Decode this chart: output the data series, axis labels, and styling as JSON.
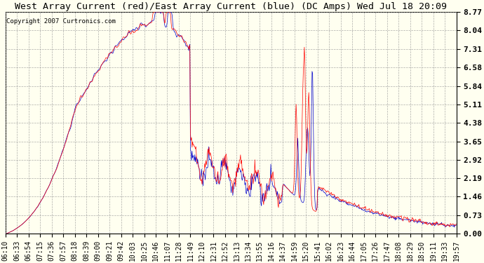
{
  "title": "West Array Current (red)/East Array Current (blue) (DC Amps) Wed Jul 18 20:09",
  "copyright": "Copyright 2007 Curtronics.com",
  "background_color": "#FFFFF0",
  "plot_bg_color": "#FFFFF0",
  "grid_color": "#999999",
  "line_color_red": "#FF0000",
  "line_color_blue": "#0000CC",
  "ylim": [
    0.0,
    8.77
  ],
  "yticks": [
    0.0,
    0.73,
    1.46,
    2.19,
    2.92,
    3.65,
    4.38,
    5.11,
    5.84,
    6.58,
    7.31,
    8.04,
    8.77
  ],
  "xtick_labels": [
    "06:10",
    "06:33",
    "06:54",
    "07:15",
    "07:36",
    "07:57",
    "08:18",
    "08:39",
    "09:00",
    "09:21",
    "09:42",
    "10:03",
    "10:25",
    "10:46",
    "11:07",
    "11:28",
    "11:49",
    "12:10",
    "12:31",
    "12:52",
    "13:13",
    "13:34",
    "13:55",
    "14:16",
    "14:37",
    "14:59",
    "15:20",
    "15:41",
    "16:02",
    "16:23",
    "16:44",
    "17:05",
    "17:26",
    "17:47",
    "18:08",
    "18:29",
    "18:50",
    "19:11",
    "19:33",
    "19:57"
  ],
  "title_fontsize": 9.5,
  "copyright_fontsize": 6.5,
  "tick_fontsize": 7
}
